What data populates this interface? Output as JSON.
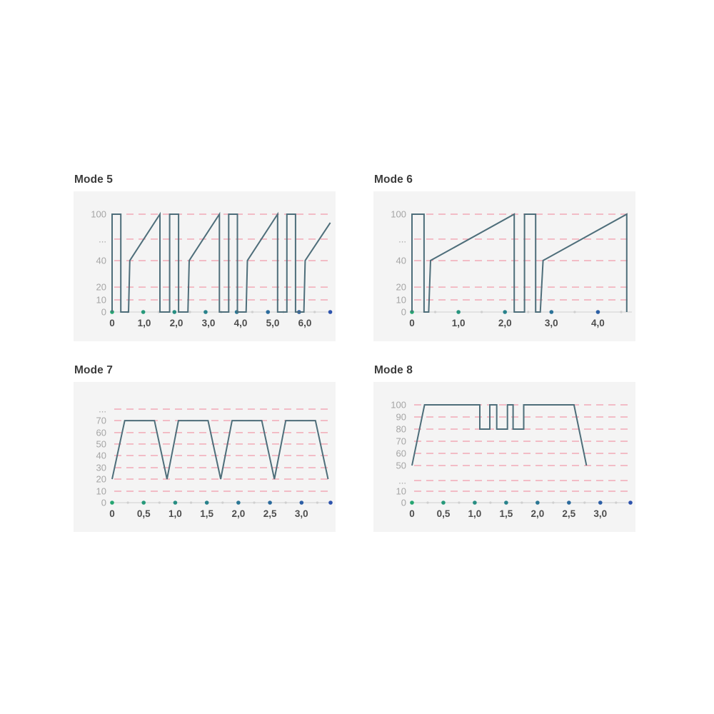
{
  "page": {
    "background": "#ffffff"
  },
  "colors": {
    "panel_bg": "#f4f4f4",
    "line": "#4e6e7a",
    "grid": "#f2aab6",
    "baseline": "#e2e2e2",
    "y_label": "#a5a5a5",
    "x_label": "#4d4d4d",
    "title": "#3c3c3c",
    "minor_dot": "#cfcfcf",
    "dot_gradient_start": "#25a571",
    "dot_gradient_end": "#2d53ad"
  },
  "chart_data": [
    {
      "type": "line",
      "title": "Mode 5",
      "xmax": 6.8,
      "grid": "dashed-horizontal",
      "legend": "none",
      "xticks": [
        {
          "label": "0",
          "value": 0
        },
        {
          "label": "1,0",
          "value": 1
        },
        {
          "label": "2,0",
          "value": 2
        },
        {
          "label": "3,0",
          "value": 3
        },
        {
          "label": "4,0",
          "value": 4
        },
        {
          "label": "5,0",
          "value": 5
        },
        {
          "label": "6,0",
          "value": 6
        }
      ],
      "yticks": [
        {
          "label": "100",
          "value": 100,
          "pos": 1.0
        },
        {
          "label": "...",
          "value": null,
          "pos": 0.745
        },
        {
          "label": "40",
          "value": 40,
          "pos": 0.526
        },
        {
          "label": "20",
          "value": 20,
          "pos": 0.255
        },
        {
          "label": "10",
          "value": 10,
          "pos": 0.124
        },
        {
          "label": "0",
          "value": 0,
          "pos": 0
        }
      ],
      "points": [
        [
          0,
          0
        ],
        [
          0,
          100
        ],
        [
          0.27,
          100
        ],
        [
          0.27,
          0
        ],
        [
          0.51,
          0
        ],
        [
          0.55,
          40
        ],
        [
          1.49,
          100
        ],
        [
          1.49,
          0
        ],
        [
          1.79,
          0
        ],
        [
          1.79,
          100
        ],
        [
          2.07,
          100
        ],
        [
          2.07,
          0
        ],
        [
          2.36,
          0
        ],
        [
          2.4,
          40
        ],
        [
          3.34,
          100
        ],
        [
          3.34,
          0
        ],
        [
          3.63,
          0
        ],
        [
          3.63,
          100
        ],
        [
          3.9,
          100
        ],
        [
          3.9,
          0
        ],
        [
          4.17,
          0
        ],
        [
          4.21,
          40
        ],
        [
          5.15,
          100
        ],
        [
          5.15,
          0
        ],
        [
          5.44,
          0
        ],
        [
          5.44,
          100
        ],
        [
          5.71,
          100
        ],
        [
          5.71,
          0
        ],
        [
          5.97,
          0
        ],
        [
          6.01,
          40
        ],
        [
          6.79,
          89
        ]
      ],
      "axis_dots_major": [
        0,
        0.97,
        1.94,
        2.91,
        3.88,
        4.85,
        5.82,
        6.79
      ],
      "axis_dots_minor": [
        0.485,
        1.455,
        2.425,
        3.395,
        4.365,
        5.335,
        6.305
      ]
    },
    {
      "type": "line",
      "title": "Mode 6",
      "xmax": 4.7,
      "grid": "dashed-horizontal",
      "legend": "none",
      "xticks": [
        {
          "label": "0",
          "value": 0
        },
        {
          "label": "1,0",
          "value": 1
        },
        {
          "label": "2,0",
          "value": 2
        },
        {
          "label": "3,0",
          "value": 3
        },
        {
          "label": "4,0",
          "value": 4
        }
      ],
      "yticks": [
        {
          "label": "100",
          "value": 100,
          "pos": 1.0
        },
        {
          "label": "...",
          "value": null,
          "pos": 0.745
        },
        {
          "label": "40",
          "value": 40,
          "pos": 0.526
        },
        {
          "label": "20",
          "value": 20,
          "pos": 0.255
        },
        {
          "label": "10",
          "value": 10,
          "pos": 0.124
        },
        {
          "label": "0",
          "value": 0,
          "pos": 0
        }
      ],
      "points": [
        [
          0,
          0
        ],
        [
          0,
          100
        ],
        [
          0.26,
          100
        ],
        [
          0.26,
          0
        ],
        [
          0.36,
          0
        ],
        [
          0.4,
          40
        ],
        [
          2.2,
          100
        ],
        [
          2.2,
          0
        ],
        [
          2.42,
          0
        ],
        [
          2.42,
          100
        ],
        [
          2.66,
          100
        ],
        [
          2.66,
          0
        ],
        [
          2.76,
          0
        ],
        [
          2.82,
          40
        ],
        [
          4.62,
          100
        ],
        [
          4.62,
          0
        ]
      ],
      "axis_dots_major": [
        0,
        1,
        2,
        3,
        4
      ],
      "axis_dots_minor": [
        0.5,
        1.5,
        2.5,
        3.5,
        4.5
      ]
    },
    {
      "type": "line",
      "title": "Mode 7",
      "xmax": 3.46,
      "grid": "dashed-horizontal",
      "legend": "none",
      "xticks": [
        {
          "label": "0",
          "value": 0
        },
        {
          "label": "0,5",
          "value": 0.5
        },
        {
          "label": "1,0",
          "value": 1
        },
        {
          "label": "1,5",
          "value": 1.5
        },
        {
          "label": "2,0",
          "value": 2
        },
        {
          "label": "2,5",
          "value": 2.5
        },
        {
          "label": "3,0",
          "value": 3
        }
      ],
      "yticks": [
        {
          "label": "...",
          "value": null,
          "pos": 0.956
        },
        {
          "label": "70",
          "value": 70,
          "pos": 0.839
        },
        {
          "label": "60",
          "value": 60,
          "pos": 0.716
        },
        {
          "label": "50",
          "value": 50,
          "pos": 0.599
        },
        {
          "label": "40",
          "value": 40,
          "pos": 0.482
        },
        {
          "label": "30",
          "value": 30,
          "pos": 0.358
        },
        {
          "label": "20",
          "value": 20,
          "pos": 0.241
        },
        {
          "label": "10",
          "value": 10,
          "pos": 0.117
        },
        {
          "label": "0",
          "value": 0,
          "pos": 0
        }
      ],
      "points": [
        [
          0,
          20
        ],
        [
          0.2,
          70
        ],
        [
          0.67,
          70
        ],
        [
          0.87,
          20
        ],
        [
          1.05,
          70
        ],
        [
          1.52,
          70
        ],
        [
          1.72,
          20
        ],
        [
          1.9,
          70
        ],
        [
          2.37,
          70
        ],
        [
          2.57,
          20
        ],
        [
          2.75,
          70
        ],
        [
          3.22,
          70
        ],
        [
          3.42,
          20
        ]
      ],
      "axis_dots_major": [
        0,
        0.5,
        1,
        1.5,
        2,
        2.5,
        3,
        3.46
      ],
      "axis_dots_minor": [
        0.25,
        0.75,
        1.25,
        1.75,
        2.25,
        2.75,
        3.25
      ]
    },
    {
      "type": "line",
      "title": "Mode 8",
      "xmax": 3.48,
      "grid": "dashed-horizontal",
      "legend": "none",
      "xticks": [
        {
          "label": "0",
          "value": 0
        },
        {
          "label": "0,5",
          "value": 0.5
        },
        {
          "label": "1,0",
          "value": 1
        },
        {
          "label": "1,5",
          "value": 1.5
        },
        {
          "label": "2,0",
          "value": 2
        },
        {
          "label": "2,5",
          "value": 2.5
        },
        {
          "label": "3,0",
          "value": 3
        }
      ],
      "yticks": [
        {
          "label": "100",
          "value": 100,
          "pos": 1.0
        },
        {
          "label": "90",
          "value": 90,
          "pos": 0.876
        },
        {
          "label": "80",
          "value": 80,
          "pos": 0.752
        },
        {
          "label": "70",
          "value": 70,
          "pos": 0.628
        },
        {
          "label": "60",
          "value": 60,
          "pos": 0.504
        },
        {
          "label": "50",
          "value": 50,
          "pos": 0.38
        },
        {
          "label": "...",
          "value": null,
          "pos": 0.226
        },
        {
          "label": "10",
          "value": 10,
          "pos": 0.117
        },
        {
          "label": "0",
          "value": 0,
          "pos": 0
        }
      ],
      "points": [
        [
          0,
          50
        ],
        [
          0.2,
          100
        ],
        [
          1.08,
          100
        ],
        [
          1.08,
          80
        ],
        [
          1.24,
          80
        ],
        [
          1.24,
          100
        ],
        [
          1.35,
          100
        ],
        [
          1.35,
          80
        ],
        [
          1.52,
          80
        ],
        [
          1.52,
          100
        ],
        [
          1.61,
          100
        ],
        [
          1.61,
          80
        ],
        [
          1.78,
          80
        ],
        [
          1.78,
          100
        ],
        [
          2.58,
          100
        ],
        [
          2.78,
          50
        ]
      ],
      "axis_dots_major": [
        0,
        0.5,
        1,
        1.5,
        2,
        2.5,
        3,
        3.48
      ],
      "axis_dots_minor": [
        0.25,
        0.75,
        1.25,
        1.75,
        2.25,
        2.75,
        3.25
      ]
    }
  ]
}
